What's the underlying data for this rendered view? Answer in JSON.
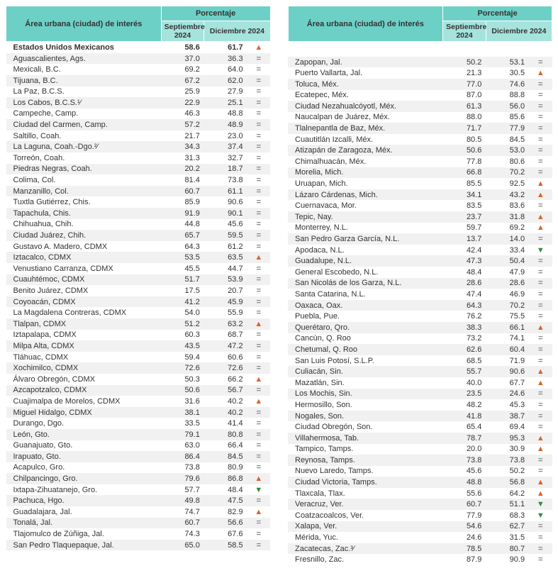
{
  "headers": {
    "area": "Área urbana (ciudad) de interés",
    "area2": "Área urbana (ciudad) de interés",
    "pct": "Porcentaje",
    "sep": "Septiembre 2024",
    "dec": "Diciembre 2024"
  },
  "symbols": {
    "up": "▲",
    "down": "▼",
    "eq": "="
  },
  "left": [
    {
      "n": "Estados Unidos Mexicanos",
      "s": "58.6",
      "d": "61.7",
      "t": "up",
      "b": true
    },
    {
      "n": "Aguascalientes, Ags.",
      "s": "37.0",
      "d": "36.3",
      "t": "eq"
    },
    {
      "n": "Mexicali, B.C.",
      "s": "69.2",
      "d": "64.0",
      "t": "eq"
    },
    {
      "n": "Tijuana, B.C.",
      "s": "67.2",
      "d": "62.0",
      "t": "eq"
    },
    {
      "n": "La Paz, B.C.S.",
      "s": "25.9",
      "d": "27.9",
      "t": "eq"
    },
    {
      "n": "Los Cabos, B.C.S.¹⁄",
      "s": "22.9",
      "d": "25.1",
      "t": "eq"
    },
    {
      "n": "Campeche, Camp.",
      "s": "46.3",
      "d": "48.8",
      "t": "eq"
    },
    {
      "n": "Ciudad del Carmen, Camp.",
      "s": "57.2",
      "d": "48.9",
      "t": "eq"
    },
    {
      "n": "Saltillo, Coah.",
      "s": "21.7",
      "d": "23.0",
      "t": "eq"
    },
    {
      "n": "La Laguna, Coah.-Dgo.²⁄",
      "s": "34.3",
      "d": "37.4",
      "t": "eq"
    },
    {
      "n": "Torreón, Coah.",
      "s": "31.3",
      "d": "32.7",
      "t": "eq"
    },
    {
      "n": "Piedras Negras, Coah.",
      "s": "20.2",
      "d": "18.7",
      "t": "eq"
    },
    {
      "n": "Colima, Col.",
      "s": "81.4",
      "d": "73.8",
      "t": "eq"
    },
    {
      "n": "Manzanillo, Col.",
      "s": "60.7",
      "d": "61.1",
      "t": "eq"
    },
    {
      "n": "Tuxtla Gutiérrez, Chis.",
      "s": "85.9",
      "d": "90.6",
      "t": "eq"
    },
    {
      "n": "Tapachula, Chis.",
      "s": "91.9",
      "d": "90.1",
      "t": "eq"
    },
    {
      "n": "Chihuahua, Chih.",
      "s": "44.8",
      "d": "45.6",
      "t": "eq"
    },
    {
      "n": "Ciudad Juárez, Chih.",
      "s": "65.7",
      "d": "59.5",
      "t": "eq"
    },
    {
      "n": "Gustavo A. Madero, CDMX",
      "s": "64.3",
      "d": "61.2",
      "t": "eq"
    },
    {
      "n": "Iztacalco, CDMX",
      "s": "53.5",
      "d": "63.5",
      "t": "up"
    },
    {
      "n": "Venustiano Carranza, CDMX",
      "s": "45.5",
      "d": "44.7",
      "t": "eq"
    },
    {
      "n": "Cuauhtémoc, CDMX",
      "s": "51.7",
      "d": "53.9",
      "t": "eq"
    },
    {
      "n": "Benito Juárez, CDMX",
      "s": "17.5",
      "d": "20.7",
      "t": "eq"
    },
    {
      "n": "Coyoacán, CDMX",
      "s": "41.2",
      "d": "45.9",
      "t": "eq"
    },
    {
      "n": "La Magdalena Contreras, CDMX",
      "s": "54.0",
      "d": "55.9",
      "t": "eq"
    },
    {
      "n": "Tlalpan, CDMX",
      "s": "51.2",
      "d": "63.2",
      "t": "up"
    },
    {
      "n": "Iztapalapa, CDMX",
      "s": "60.3",
      "d": "68.7",
      "t": "eq"
    },
    {
      "n": "Milpa Alta, CDMX",
      "s": "43.5",
      "d": "47.2",
      "t": "eq"
    },
    {
      "n": "Tláhuac, CDMX",
      "s": "59.4",
      "d": "60.6",
      "t": "eq"
    },
    {
      "n": "Xochimilco, CDMX",
      "s": "72.6",
      "d": "72.6",
      "t": "eq"
    },
    {
      "n": "Álvaro Obregón, CDMX",
      "s": "50.3",
      "d": "66.2",
      "t": "up"
    },
    {
      "n": "Azcapotzalco, CDMX",
      "s": "50.6",
      "d": "56.7",
      "t": "eq"
    },
    {
      "n": "Cuajimalpa de Morelos, CDMX",
      "s": "31.6",
      "d": "40.2",
      "t": "up"
    },
    {
      "n": "Miguel Hidalgo, CDMX",
      "s": "38.1",
      "d": "40.2",
      "t": "eq"
    },
    {
      "n": "Durango, Dgo.",
      "s": "33.5",
      "d": "41.4",
      "t": "eq"
    },
    {
      "n": "León, Gto.",
      "s": "79.1",
      "d": "80.8",
      "t": "eq"
    },
    {
      "n": "Guanajuato, Gto.",
      "s": "63.0",
      "d": "66.4",
      "t": "eq"
    },
    {
      "n": "Irapuato, Gto.",
      "s": "86.4",
      "d": "84.5",
      "t": "eq"
    },
    {
      "n": "Acapulco, Gro.",
      "s": "73.8",
      "d": "80.9",
      "t": "eq"
    },
    {
      "n": "Chilpancingo, Gro.",
      "s": "79.6",
      "d": "86.8",
      "t": "up"
    },
    {
      "n": "Ixtapa-Zihuatanejo, Gro.",
      "s": "57.7",
      "d": "48.4",
      "t": "down"
    },
    {
      "n": "Pachuca, Hgo.",
      "s": "49.8",
      "d": "47.5",
      "t": "eq"
    },
    {
      "n": "Guadalajara, Jal.",
      "s": "74.7",
      "d": "82.9",
      "t": "up"
    },
    {
      "n": "Tonalá, Jal.",
      "s": "60.7",
      "d": "56.6",
      "t": "eq"
    },
    {
      "n": "Tlajomulco de Zúñiga, Jal.",
      "s": "74.3",
      "d": "67.6",
      "t": "eq"
    },
    {
      "n": "San Pedro Tlaquepaque, Jal.",
      "s": "65.0",
      "d": "58.5",
      "t": "eq"
    }
  ],
  "right": [
    {
      "n": "Zapopan, Jal.",
      "s": "50.2",
      "d": "53.1",
      "t": "eq"
    },
    {
      "n": "Puerto Vallarta, Jal.",
      "s": "21.3",
      "d": "30.5",
      "t": "up"
    },
    {
      "n": "Toluca, Méx.",
      "s": "77.0",
      "d": "74.6",
      "t": "eq"
    },
    {
      "n": "Ecatepec, Méx.",
      "s": "87.0",
      "d": "88.8",
      "t": "eq"
    },
    {
      "n": "Ciudad Nezahualcóyotl, Méx.",
      "s": "61.3",
      "d": "56.0",
      "t": "eq"
    },
    {
      "n": "Naucalpan de Juárez, Méx.",
      "s": "88.0",
      "d": "85.6",
      "t": "eq"
    },
    {
      "n": "Tlalnepantla de Baz, Méx.",
      "s": "71.7",
      "d": "77.9",
      "t": "eq"
    },
    {
      "n": "Cuautitlán Izcalli, Méx.",
      "s": "80.5",
      "d": "84.5",
      "t": "eq"
    },
    {
      "n": "Atizapán de Zaragoza, Méx.",
      "s": "50.6",
      "d": "53.0",
      "t": "eq"
    },
    {
      "n": "Chimalhuacán, Méx.",
      "s": "77.8",
      "d": "80.6",
      "t": "eq"
    },
    {
      "n": "Morelia, Mich.",
      "s": "66.8",
      "d": "70.2",
      "t": "eq"
    },
    {
      "n": "Uruapan, Mich.",
      "s": "85.5",
      "d": "92.5",
      "t": "up"
    },
    {
      "n": "Lázaro Cárdenas, Mich.",
      "s": "34.1",
      "d": "43.2",
      "t": "up"
    },
    {
      "n": "Cuernavaca, Mor.",
      "s": "83.5",
      "d": "83.6",
      "t": "eq"
    },
    {
      "n": "Tepic, Nay.",
      "s": "23.7",
      "d": "31.8",
      "t": "up"
    },
    {
      "n": "Monterrey, N.L.",
      "s": "59.7",
      "d": "69.2",
      "t": "up"
    },
    {
      "n": "San Pedro Garza García, N.L.",
      "s": "13.7",
      "d": "14.0",
      "t": "eq"
    },
    {
      "n": "Apodaca, N.L.",
      "s": "42.4",
      "d": "33.4",
      "t": "down"
    },
    {
      "n": "Guadalupe, N.L.",
      "s": "47.3",
      "d": "50.4",
      "t": "eq"
    },
    {
      "n": "General Escobedo, N.L.",
      "s": "48.4",
      "d": "47.9",
      "t": "eq"
    },
    {
      "n": "San Nicolás de los Garza, N.L.",
      "s": "28.6",
      "d": "28.6",
      "t": "eq"
    },
    {
      "n": "Santa Catarina, N.L.",
      "s": "47.4",
      "d": "46.9",
      "t": "eq"
    },
    {
      "n": "Oaxaca, Oax.",
      "s": "64.3",
      "d": "70.2",
      "t": "eq"
    },
    {
      "n": "Puebla, Pue.",
      "s": "76.2",
      "d": "75.5",
      "t": "eq"
    },
    {
      "n": "Querétaro, Qro.",
      "s": "38.3",
      "d": "66.1",
      "t": "up"
    },
    {
      "n": "Cancún, Q. Roo",
      "s": "73.2",
      "d": "74.1",
      "t": "eq"
    },
    {
      "n": "Chetumal, Q. Roo",
      "s": "62.6",
      "d": "60.4",
      "t": "eq"
    },
    {
      "n": "San Luis Potosí, S.L.P.",
      "s": "68.5",
      "d": "71.9",
      "t": "eq"
    },
    {
      "n": "Culiacán, Sin.",
      "s": "55.7",
      "d": "90.6",
      "t": "up"
    },
    {
      "n": "Mazatlán, Sin.",
      "s": "40.0",
      "d": "67.7",
      "t": "up"
    },
    {
      "n": "Los Mochis, Sin.",
      "s": "23.5",
      "d": "24.6",
      "t": "eq"
    },
    {
      "n": "Hermosillo, Son.",
      "s": "48.2",
      "d": "45.3",
      "t": "eq"
    },
    {
      "n": "Nogales, Son.",
      "s": "41.8",
      "d": "38.7",
      "t": "eq"
    },
    {
      "n": "Ciudad Obregón, Son.",
      "s": "65.4",
      "d": "69.4",
      "t": "eq"
    },
    {
      "n": "Villahermosa, Tab.",
      "s": "78.7",
      "d": "95.3",
      "t": "up"
    },
    {
      "n": "Tampico, Tamps.",
      "s": "20.0",
      "d": "30.9",
      "t": "up"
    },
    {
      "n": "Reynosa, Tamps.",
      "s": "73.8",
      "d": "73.8",
      "t": "eq"
    },
    {
      "n": "Nuevo Laredo, Tamps.",
      "s": "45.6",
      "d": "50.2",
      "t": "eq"
    },
    {
      "n": "Ciudad Victoria, Tamps.",
      "s": "48.8",
      "d": "56.8",
      "t": "up"
    },
    {
      "n": "Tlaxcala, Tlax.",
      "s": "55.6",
      "d": "64.2",
      "t": "up"
    },
    {
      "n": "Veracruz, Ver.",
      "s": "60.7",
      "d": "51.1",
      "t": "down"
    },
    {
      "n": "Coatzacoalcos, Ver.",
      "s": "77.9",
      "d": "68.3",
      "t": "down"
    },
    {
      "n": "Xalapa, Ver.",
      "s": "54.6",
      "d": "62.7",
      "t": "eq"
    },
    {
      "n": "Mérida, Yuc.",
      "s": "24.6",
      "d": "31.5",
      "t": "eq"
    },
    {
      "n": "Zacatecas, Zac.³⁄",
      "s": "78.5",
      "d": "80.7",
      "t": "eq"
    },
    {
      "n": "Fresnillo, Zac.",
      "s": "87.9",
      "d": "90.9",
      "t": "eq"
    }
  ]
}
